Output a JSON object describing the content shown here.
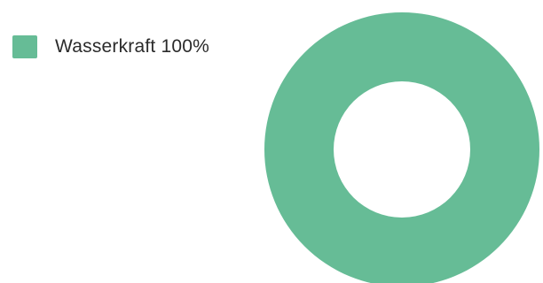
{
  "chart_data": {
    "type": "pie",
    "variant": "donut",
    "title": "",
    "slices": [
      {
        "name": "Wasserkraft",
        "value": 100,
        "color": "#66bc96"
      }
    ],
    "legend": {
      "placement": "top-left",
      "entries": [
        {
          "label": "Wasserkraft 100%",
          "color": "#66bc96"
        }
      ]
    }
  }
}
